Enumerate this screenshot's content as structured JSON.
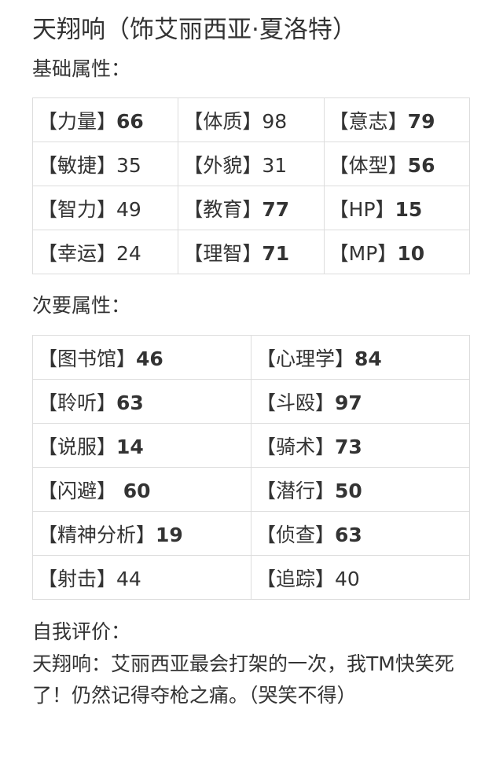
{
  "title": "天翔响（饰艾丽西亚·夏洛特）",
  "basic": {
    "heading": "基础属性：",
    "rows": [
      [
        {
          "label": "【力量】",
          "value": "66",
          "bold": true
        },
        {
          "label": "【体质】",
          "value": "98",
          "bold": false
        },
        {
          "label": "【意志】",
          "value": "79",
          "bold": true
        }
      ],
      [
        {
          "label": "【敏捷】",
          "value": "35",
          "bold": false
        },
        {
          "label": "【外貌】",
          "value": "31",
          "bold": false
        },
        {
          "label": "【体型】",
          "value": "56",
          "bold": true
        }
      ],
      [
        {
          "label": "【智力】",
          "value": "49",
          "bold": false
        },
        {
          "label": "【教育】",
          "value": "77",
          "bold": true
        },
        {
          "label": "【HP】",
          "value": "15",
          "bold": true
        }
      ],
      [
        {
          "label": "【幸运】",
          "value": "24",
          "bold": false
        },
        {
          "label": "【理智】",
          "value": "71",
          "bold": true
        },
        {
          "label": "【MP】",
          "value": "10",
          "bold": true
        }
      ]
    ]
  },
  "secondary": {
    "heading": "次要属性：",
    "rows": [
      [
        {
          "label": "【图书馆】",
          "value": "46",
          "bold": true
        },
        {
          "label": "【心理学】",
          "value": "84",
          "bold": true
        }
      ],
      [
        {
          "label": "【聆听】",
          "value": "63",
          "bold": true
        },
        {
          "label": "【斗殴】",
          "value": "97",
          "bold": true
        }
      ],
      [
        {
          "label": "【说服】",
          "value": "14",
          "bold": true
        },
        {
          "label": "【骑术】",
          "value": "73",
          "bold": true
        }
      ],
      [
        {
          "label": "【闪避】",
          "value": " 60",
          "bold": true
        },
        {
          "label": "【潜行】",
          "value": "50",
          "bold": true
        }
      ],
      [
        {
          "label": "【精神分析】",
          "value": "19",
          "bold": true
        },
        {
          "label": "【侦查】",
          "value": "63",
          "bold": true
        }
      ],
      [
        {
          "label": "【射击】",
          "value": "44",
          "bold": false
        },
        {
          "label": "【追踪】",
          "value": "40",
          "bold": false
        }
      ]
    ]
  },
  "review": {
    "heading": "自我评价：",
    "text": "天翔响：艾丽西亚最会打架的一次，我TM快笑死了！仍然记得夺枪之痛。（哭笑不得）"
  }
}
